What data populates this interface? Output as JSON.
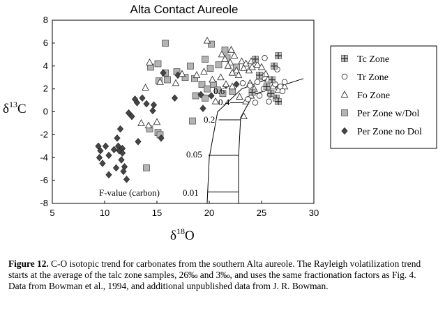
{
  "chart_data": {
    "type": "scatter",
    "title": "Alta Contact Aureole",
    "xlabel": {
      "base": "δ",
      "sup": "18",
      "main": "O"
    },
    "ylabel": {
      "base": "δ",
      "sup": "13",
      "main": "C"
    },
    "xlim": [
      5,
      30
    ],
    "ylim": [
      -8,
      8
    ],
    "xticks": [
      "5",
      "10",
      "15",
      "20",
      "25",
      "30"
    ],
    "yticks": [
      "8",
      "6",
      "4",
      "2",
      "0",
      "-2",
      "-4",
      "-6",
      "-8"
    ],
    "grid": false,
    "legend_position": "right",
    "series": [
      {
        "name": "Tc Zone",
        "marker": "square-plus",
        "points": [
          [
            26.6,
            4.9
          ],
          [
            24.4,
            4.6
          ],
          [
            26.2,
            4.0
          ],
          [
            24.8,
            3.2
          ],
          [
            26.0,
            2.8
          ],
          [
            25.5,
            2.2
          ],
          [
            26.4,
            1.2
          ],
          [
            26.6,
            0.9
          ],
          [
            24.1,
            1.7
          ],
          [
            25.9,
            1.6
          ]
        ]
      },
      {
        "name": "Tr Zone",
        "marker": "circle",
        "points": [
          [
            25.3,
            4.7
          ],
          [
            26.5,
            3.7
          ],
          [
            25.0,
            3.2
          ],
          [
            23.9,
            2.3
          ],
          [
            24.6,
            2.6
          ],
          [
            25.2,
            2.0
          ],
          [
            26.3,
            2.4
          ],
          [
            26.8,
            2.2
          ],
          [
            27.2,
            2.6
          ],
          [
            25.8,
            1.5
          ],
          [
            24.8,
            1.4
          ],
          [
            23.2,
            2.5
          ],
          [
            23.7,
            1.1
          ],
          [
            24.4,
            0.8
          ],
          [
            25.7,
            0.9
          ],
          [
            27.0,
            1.8
          ]
        ]
      },
      {
        "name": "Fo Zone",
        "marker": "triangle",
        "points": [
          [
            19.8,
            6.2
          ],
          [
            21.2,
            5.0
          ],
          [
            22.1,
            5.4
          ],
          [
            22.4,
            4.9
          ],
          [
            22.0,
            4.3
          ],
          [
            21.5,
            4.6
          ],
          [
            21.8,
            4.0
          ],
          [
            22.6,
            3.6
          ],
          [
            22.2,
            3.4
          ],
          [
            23.1,
            4.4
          ],
          [
            23.5,
            4.2
          ],
          [
            24.0,
            4.4
          ],
          [
            23.8,
            3.6
          ],
          [
            23.3,
            3.8
          ],
          [
            22.8,
            3.2
          ],
          [
            24.1,
            3.9
          ],
          [
            24.6,
            4.1
          ],
          [
            25.0,
            3.9
          ],
          [
            25.4,
            3.3
          ],
          [
            24.8,
            3.0
          ],
          [
            23.9,
            2.5
          ],
          [
            24.3,
            2.0
          ],
          [
            25.6,
            2.8
          ],
          [
            26.1,
            2.2
          ],
          [
            26.6,
            1.9
          ],
          [
            27.2,
            2.2
          ],
          [
            22.2,
            2.2
          ],
          [
            21.6,
            2.4
          ],
          [
            20.3,
            2.8
          ],
          [
            19.5,
            3.5
          ],
          [
            18.8,
            3.2
          ],
          [
            17.4,
            3.3
          ],
          [
            16.8,
            2.5
          ],
          [
            15.3,
            2.6
          ],
          [
            13.9,
            2.1
          ],
          [
            14.3,
            4.3
          ],
          [
            13.5,
            -1.0
          ],
          [
            14.2,
            -1.2
          ],
          [
            15.0,
            -0.9
          ],
          [
            23.3,
            -0.4
          ],
          [
            23.5,
            0.9
          ],
          [
            24.0,
            1.4
          ],
          [
            22.9,
            1.3
          ],
          [
            20.6,
            0.9
          ],
          [
            21.1,
            3.0
          ]
        ]
      },
      {
        "name": "Per Zone w/Dol",
        "marker": "square",
        "points": [
          [
            15.8,
            6.0
          ],
          [
            20.2,
            5.9
          ],
          [
            21.5,
            5.4
          ],
          [
            19.6,
            4.6
          ],
          [
            21.7,
            4.7
          ],
          [
            20.9,
            4.1
          ],
          [
            20.1,
            3.8
          ],
          [
            18.2,
            4.0
          ],
          [
            15.1,
            4.2
          ],
          [
            14.4,
            3.9
          ],
          [
            15.8,
            3.4
          ],
          [
            16.9,
            3.5
          ],
          [
            17.7,
            3.0
          ],
          [
            18.6,
            2.9
          ],
          [
            19.3,
            2.4
          ],
          [
            19.8,
            2.0
          ],
          [
            18.7,
            1.4
          ],
          [
            19.6,
            1.2
          ],
          [
            20.4,
            2.4
          ],
          [
            22.2,
            1.8
          ],
          [
            22.6,
            3.9
          ],
          [
            16.0,
            2.8
          ],
          [
            15.2,
            2.7
          ],
          [
            15.1,
            -1.8
          ],
          [
            14.3,
            -1.5
          ],
          [
            15.3,
            -2.0
          ],
          [
            18.4,
            -0.8
          ],
          [
            14.0,
            -4.9
          ],
          [
            20.8,
            1.9
          ],
          [
            21.3,
            1.6
          ]
        ]
      },
      {
        "name": "Per Zone no Dol",
        "marker": "diamond",
        "points": [
          [
            9.4,
            -3.0
          ],
          [
            9.6,
            -3.4
          ],
          [
            9.5,
            -4.0
          ],
          [
            9.8,
            -4.5
          ],
          [
            10.1,
            -3.0
          ],
          [
            10.4,
            -3.8
          ],
          [
            10.9,
            -3.3
          ],
          [
            11.3,
            -3.0
          ],
          [
            11.4,
            -3.4
          ],
          [
            11.7,
            -3.2
          ],
          [
            11.6,
            -4.2
          ],
          [
            11.1,
            -4.9
          ],
          [
            11.9,
            -4.8
          ],
          [
            10.4,
            -5.5
          ],
          [
            12.1,
            -5.9
          ],
          [
            11.8,
            -5.2
          ],
          [
            11.2,
            -2.3
          ],
          [
            11.5,
            -1.5
          ],
          [
            11.7,
            -3.6
          ],
          [
            13.2,
            -2.6
          ],
          [
            12.6,
            -0.4
          ],
          [
            13.1,
            0.8
          ],
          [
            12.9,
            1.1
          ],
          [
            13.6,
            1.2
          ],
          [
            14.0,
            0.7
          ],
          [
            14.6,
            0.1
          ],
          [
            14.7,
            0.6
          ],
          [
            15.4,
            -2.3
          ],
          [
            15.6,
            3.4
          ],
          [
            17.0,
            3.2
          ],
          [
            16.7,
            1.2
          ],
          [
            19.2,
            1.5
          ],
          [
            19.4,
            0.3
          ],
          [
            20.2,
            1.4
          ],
          [
            21.6,
            2.3
          ],
          [
            22.6,
            2.4
          ],
          [
            12.3,
            -0.1
          ]
        ]
      }
    ],
    "rayleigh_curves": [
      {
        "x": [
          29.0,
          24.2,
          23.0,
          22.8,
          22.8
        ],
        "y": [
          2.9,
          1.5,
          -0.5,
          -4.0,
          -8.0
        ]
      },
      {
        "x": [
          26.0,
          23.1,
          20.8,
          20.0,
          19.8
        ],
        "y": [
          3.0,
          2.0,
          0.0,
          -4.0,
          -8.0
        ]
      }
    ],
    "f_value_ticks": [
      {
        "value": 0.6,
        "x1": 25.7,
        "x2": 26.1,
        "y": 2.6
      },
      {
        "value": 0.4,
        "x1": 22.0,
        "x2": 23.3,
        "y": 0.8
      },
      {
        "value": 0.2,
        "x1": 20.9,
        "x2": 23.0,
        "y": -0.7
      },
      {
        "value": 0.05,
        "x1": 19.9,
        "x2": 22.8,
        "y": -3.8
      },
      {
        "value": 0.01,
        "x1": 19.8,
        "x2": 22.8,
        "y": -7.0
      }
    ],
    "annotations": {
      "f06": "0.6",
      "f04": "0.4",
      "f02": "0.2",
      "f005": "0.05",
      "fvalue": "F-value (carbon)",
      "f001": "0.01"
    }
  },
  "caption": {
    "label": "Figure 12.",
    "text": " C-O isotopic trend for carbonates from the southern Alta aureole.  The Rayleigh volatilization trend starts at the average of the talc zone samples, 26‰ and 3‰, and uses the same fractionation factors as Fig. 4.  Data from Bowman et al., 1994, and additional unpublished data from J. R. Bowman."
  }
}
